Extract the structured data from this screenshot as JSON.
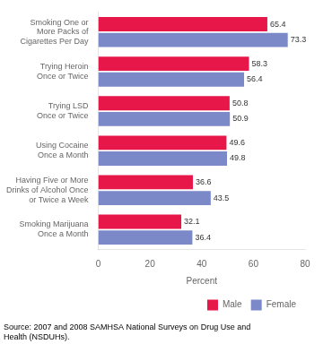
{
  "chart_data": {
    "type": "bar",
    "orientation": "horizontal",
    "categories": [
      "Smoking One or\nMore Packs of\nCigarettes Per Day",
      "Trying Heroin\nOnce or Twice",
      "Trying LSD\nOnce or Twice",
      "Using Cocaine\nOnce a Month",
      "Having Five or More\nDrinks of Alcohol Once\nor Twice a Week",
      "Smoking Marijuana\nOnce a Month"
    ],
    "series": [
      {
        "name": "Male",
        "color": "#e8174a",
        "values": [
          65.4,
          58.3,
          50.8,
          49.6,
          36.6,
          32.1
        ]
      },
      {
        "name": "Female",
        "color": "#7b89c9",
        "values": [
          73.3,
          56.4,
          50.9,
          49.8,
          43.5,
          36.4
        ]
      }
    ],
    "xlabel": "Percent",
    "xlim": [
      0,
      80
    ],
    "xticks": [
      0,
      20,
      40,
      60,
      80
    ],
    "data_labels": true,
    "grid": false,
    "legend": "lower right",
    "annotations": [
      "Source: 2007 and 2008 SAMHSA National Surveys on Drug Use and\nHealth (NSDUHs)."
    ]
  }
}
